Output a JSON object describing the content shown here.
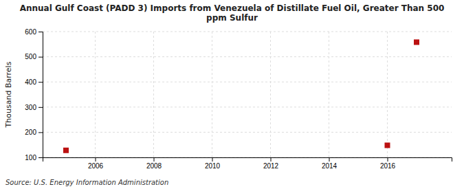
{
  "chart_data": {
    "type": "scatter",
    "title": "Annual Gulf Coast (PADD 3) Imports from Venezuela of Distillate Fuel Oil, Greater Than 500\nppm Sulfur",
    "y_label": "Thousand Barrels",
    "source": "Source: U.S. Energy Information Administration",
    "x": [
      2005,
      2016,
      2017
    ],
    "values": [
      128,
      148,
      558
    ],
    "color": "#bb1111",
    "marker": "square",
    "xlim": [
      2004.2,
      2018.2
    ],
    "ylim": [
      100,
      600
    ],
    "xticks": [
      2006,
      2008,
      2010,
      2012,
      2014,
      2016
    ],
    "yticks": [
      100,
      200,
      300,
      400,
      500,
      600
    ],
    "grid": true
  }
}
